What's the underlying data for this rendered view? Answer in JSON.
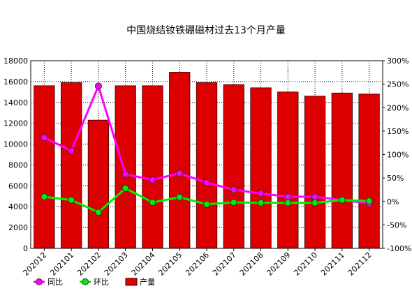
{
  "chart_data": {
    "type": "bar_line",
    "title": "中国烧结钕铁硼磁材过去13个月产量",
    "categories": [
      "202012",
      "202101",
      "202102",
      "202103",
      "202104",
      "202105",
      "202106",
      "202107",
      "202108",
      "202109",
      "202110",
      "202111",
      "202112"
    ],
    "series": [
      {
        "name": "同比",
        "type": "line",
        "axis": "y2",
        "color": "#ff00ff",
        "values": [
          136,
          108,
          246,
          58,
          46,
          60,
          40,
          25,
          17,
          10,
          10,
          3,
          -4
        ]
      },
      {
        "name": "环比",
        "type": "line",
        "axis": "y2",
        "color": "#00ee00",
        "values": [
          10,
          3,
          -23,
          28,
          -2,
          9,
          -6,
          -2,
          -3,
          -3,
          -3,
          3,
          1
        ]
      },
      {
        "name": "产量",
        "type": "bar",
        "color": "#dd0000",
        "values": [
          15600,
          15900,
          12300,
          15600,
          15600,
          16900,
          15900,
          15700,
          15400,
          15000,
          14600,
          14900,
          14800
        ]
      }
    ],
    "ylim": [
      0,
      18000
    ],
    "yticks": [
      0,
      2000,
      4000,
      6000,
      8000,
      10000,
      12000,
      14000,
      16000,
      18000
    ],
    "y2lim": [
      -100,
      300
    ],
    "y2ticks": [
      {
        "value": -100,
        "label": "-100%"
      },
      {
        "value": -50,
        "label": "-50%"
      },
      {
        "value": 0,
        "label": "0%"
      },
      {
        "value": 50,
        "label": "50%"
      },
      {
        "value": 100,
        "label": "100%"
      },
      {
        "value": 150,
        "label": "150%"
      },
      {
        "value": 200,
        "label": "200%"
      },
      {
        "value": 250,
        "label": "250%"
      },
      {
        "value": 300,
        "label": "300%"
      }
    ],
    "grid": true
  }
}
